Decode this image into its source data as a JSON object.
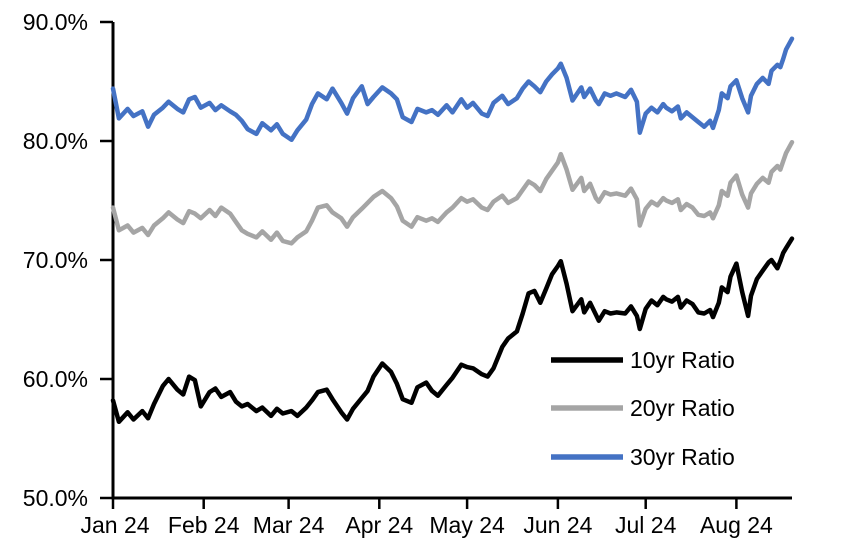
{
  "chart_data": {
    "type": "line",
    "title": "",
    "xlabel": "",
    "ylabel": "",
    "grid": false,
    "background_color": "#FFFFFF",
    "axis_color": "#000000",
    "y_axis": {
      "unit": "%",
      "ylim": [
        50.0,
        90.0
      ],
      "tick_values": [
        90,
        80,
        70,
        60,
        50
      ],
      "tick_labels": [
        "90.0%",
        "80.0%",
        "70.0%",
        "60.0%",
        "50.0%"
      ]
    },
    "x_axis": {
      "domain_days": [
        0,
        232
      ],
      "tick_days": [
        0,
        31,
        60,
        91,
        121,
        152,
        182,
        213
      ],
      "tick_labels": [
        "Jan 24",
        "Feb 24",
        "Mar 24",
        "Apr 24",
        "May 24",
        "Jun 24",
        "Jul 24",
        "Aug 24"
      ]
    },
    "legend": {
      "position": "inside-lower-right",
      "entries": [
        "10yr Ratio",
        "20yr Ratio",
        "30yr Ratio"
      ]
    },
    "x_days": [
      0,
      2,
      5,
      7,
      10,
      12,
      14,
      17,
      19,
      22,
      24,
      26,
      28,
      30,
      33,
      35,
      37,
      40,
      42,
      44,
      46,
      49,
      51,
      54,
      56,
      58,
      61,
      63,
      66,
      68,
      70,
      73,
      75,
      78,
      80,
      82,
      85,
      87,
      89,
      92,
      95,
      97,
      99,
      102,
      104,
      107,
      109,
      111,
      114,
      116,
      119,
      121,
      123,
      126,
      128,
      130,
      133,
      135,
      138,
      140,
      142,
      144,
      146,
      148,
      150,
      152,
      153,
      155,
      157,
      160,
      161,
      163,
      165,
      166,
      168,
      170,
      172,
      175,
      177,
      179,
      180,
      182,
      184,
      186,
      188,
      189,
      191,
      193,
      194,
      196,
      198,
      200,
      202,
      204,
      205,
      207,
      208,
      210,
      211,
      213,
      215,
      217,
      218,
      220,
      222,
      224,
      225,
      227,
      228,
      229,
      230,
      232
    ],
    "series": [
      {
        "name": "10yr Ratio",
        "color": "#000000",
        "values": [
          58.2,
          56.4,
          57.2,
          56.6,
          57.3,
          56.7,
          57.9,
          59.4,
          60.0,
          59.1,
          58.7,
          60.2,
          59.9,
          57.7,
          58.9,
          59.2,
          58.5,
          58.9,
          58.1,
          57.7,
          57.9,
          57.3,
          57.6,
          56.9,
          57.5,
          57.1,
          57.3,
          56.9,
          57.6,
          58.2,
          58.9,
          59.1,
          58.3,
          57.2,
          56.6,
          57.5,
          58.4,
          59.0,
          60.2,
          61.3,
          60.6,
          59.6,
          58.3,
          58.0,
          59.3,
          59.7,
          59.0,
          58.6,
          59.5,
          60.1,
          61.2,
          61.0,
          60.9,
          60.4,
          60.2,
          60.9,
          62.7,
          63.4,
          64.0,
          65.5,
          67.2,
          67.4,
          66.4,
          67.6,
          68.8,
          69.5,
          69.9,
          68.0,
          65.7,
          66.7,
          65.6,
          66.4,
          65.4,
          64.9,
          65.7,
          65.5,
          65.6,
          65.5,
          66.1,
          65.3,
          64.2,
          65.9,
          66.6,
          66.2,
          66.9,
          66.7,
          66.5,
          66.9,
          66.0,
          66.6,
          66.3,
          65.6,
          65.5,
          65.8,
          65.2,
          66.4,
          67.7,
          67.3,
          68.6,
          69.7,
          67.3,
          65.3,
          67.0,
          68.4,
          69.1,
          69.8,
          70.0,
          69.3,
          69.9,
          70.6,
          71.0,
          71.8
        ]
      },
      {
        "name": "20yr Ratio",
        "color": "#A5A5A5",
        "values": [
          74.4,
          72.5,
          72.9,
          72.3,
          72.7,
          72.1,
          72.9,
          73.5,
          74.0,
          73.4,
          73.1,
          74.1,
          73.9,
          73.5,
          74.2,
          73.7,
          74.4,
          73.9,
          73.2,
          72.5,
          72.2,
          71.9,
          72.4,
          71.7,
          72.3,
          71.6,
          71.4,
          71.9,
          72.4,
          73.3,
          74.4,
          74.6,
          74.0,
          73.5,
          72.8,
          73.6,
          74.3,
          74.8,
          75.3,
          75.8,
          75.2,
          74.5,
          73.3,
          72.8,
          73.6,
          73.3,
          73.5,
          73.2,
          74.0,
          74.4,
          75.2,
          74.9,
          75.1,
          74.4,
          74.2,
          74.9,
          75.4,
          74.8,
          75.2,
          75.9,
          76.6,
          76.3,
          75.8,
          76.8,
          77.5,
          78.2,
          78.9,
          77.6,
          75.9,
          76.9,
          75.8,
          76.4,
          75.2,
          74.9,
          75.7,
          75.5,
          75.6,
          75.4,
          76.0,
          75.1,
          72.9,
          74.3,
          74.9,
          74.6,
          75.2,
          75.0,
          74.8,
          75.1,
          74.2,
          74.7,
          74.4,
          73.8,
          73.7,
          74.0,
          73.5,
          74.6,
          75.8,
          75.4,
          76.5,
          77.1,
          75.5,
          74.4,
          75.6,
          76.4,
          76.9,
          76.5,
          77.4,
          77.9,
          77.6,
          78.3,
          79.0,
          79.9
        ]
      },
      {
        "name": "30yr Ratio",
        "color": "#4472C4",
        "values": [
          84.4,
          81.9,
          82.7,
          82.1,
          82.5,
          81.2,
          82.2,
          82.8,
          83.3,
          82.7,
          82.4,
          83.5,
          83.7,
          82.8,
          83.2,
          82.6,
          83.0,
          82.5,
          82.2,
          81.7,
          81.0,
          80.6,
          81.5,
          80.9,
          81.4,
          80.6,
          80.1,
          80.9,
          81.8,
          83.1,
          84.0,
          83.5,
          84.4,
          83.2,
          82.3,
          83.6,
          84.6,
          83.1,
          83.7,
          84.5,
          84.0,
          83.5,
          82.0,
          81.6,
          82.7,
          82.4,
          82.6,
          82.2,
          83.0,
          82.4,
          83.5,
          82.8,
          83.2,
          82.3,
          82.1,
          83.2,
          83.8,
          83.1,
          83.6,
          84.4,
          85.0,
          84.6,
          84.1,
          85.0,
          85.6,
          86.1,
          86.5,
          85.3,
          83.4,
          84.5,
          83.7,
          84.4,
          83.4,
          83.1,
          84.0,
          83.8,
          84.0,
          83.7,
          84.3,
          83.3,
          80.7,
          82.3,
          82.8,
          82.4,
          83.1,
          82.8,
          82.5,
          82.9,
          81.9,
          82.4,
          82.0,
          81.6,
          81.2,
          81.7,
          81.1,
          82.6,
          84.0,
          83.6,
          84.6,
          85.1,
          83.6,
          82.4,
          83.8,
          84.8,
          85.3,
          84.8,
          85.9,
          86.4,
          86.2,
          86.9,
          87.7,
          88.6
        ]
      }
    ]
  }
}
